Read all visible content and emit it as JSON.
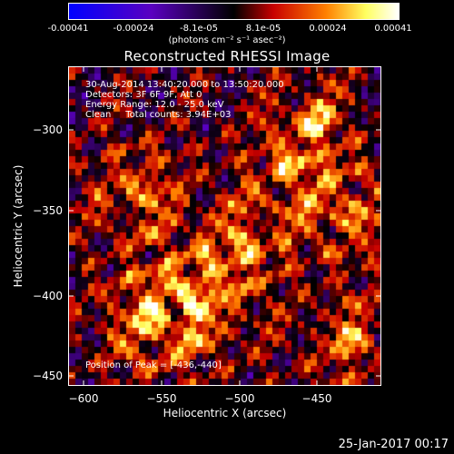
{
  "colorbar": {
    "ticks": [
      "-0.00041",
      "-0.00024",
      "-8.1e-05",
      "8.1e-05",
      "0.00024",
      "0.00041"
    ],
    "units": "(photons cm⁻² s⁻¹ asec⁻²)",
    "colormap": [
      "#0000ff",
      "#5a00c0",
      "#000000",
      "#c80000",
      "#ff8000",
      "#ffff60",
      "#ffffff"
    ]
  },
  "title": "Reconstructed RHESSI Image",
  "info": {
    "line1": "30-Aug-2014 13:40:20.000 to 13:50:20.000",
    "line2": "Detectors: 3F 6F 9F, Att 0",
    "line3": "Energy Range: 12.0 - 25.0 keV",
    "line4": "Clean     Total counts: 3.94E+03",
    "peak": "Position of Peak = [-436,-440]"
  },
  "axes": {
    "xlabel": "Heliocentric X (arcsec)",
    "ylabel": "Heliocentric Y (arcsec)",
    "xticks": [
      "−600",
      "−550",
      "−500",
      "−450"
    ],
    "yticks": [
      "−300",
      "−350",
      "−400",
      "−450"
    ],
    "xlim": [
      -610,
      -410
    ],
    "ylim": [
      -455,
      -250
    ]
  },
  "timestamp": "25-Jan-2017 00:17"
}
